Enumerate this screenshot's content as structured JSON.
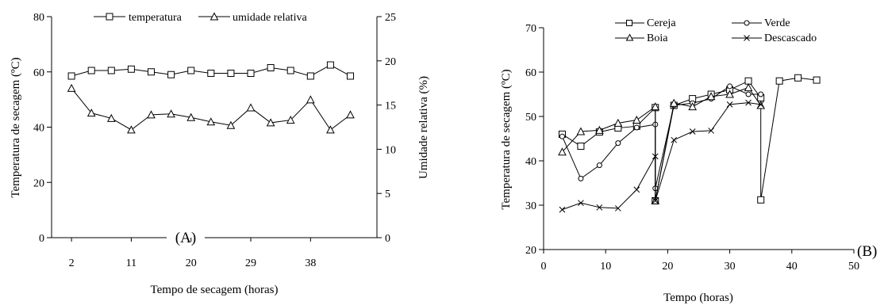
{
  "chart_data": [
    {
      "type": "line",
      "panel_label": "(A)",
      "xlabel": "Tempo de secagem (horas)",
      "ylabel": "Temperatura de secagem (ºC)",
      "y2label": "Umidade relativa (%)",
      "x_ticks": [
        "2",
        "11",
        "20",
        "29",
        "38"
      ],
      "y_ticks": [
        "0",
        "20",
        "40",
        "60",
        "80"
      ],
      "y2_ticks": [
        "0",
        "5",
        "10",
        "15",
        "20",
        "25"
      ],
      "xlim": [
        -1,
        48
      ],
      "ylim": [
        0,
        80
      ],
      "y2lim": [
        0,
        25
      ],
      "legend_position": "top",
      "series": [
        {
          "name": "temperatura",
          "marker": "square",
          "axis": "left",
          "x": [
            2,
            5,
            8,
            11,
            14,
            17,
            20,
            23,
            26,
            29,
            32,
            35,
            38,
            41,
            44
          ],
          "values": [
            58.5,
            60.5,
            60.5,
            61,
            60,
            59,
            60.5,
            59.5,
            59.5,
            59.5,
            61.5,
            60.5,
            58.5,
            62.5,
            58.5
          ]
        },
        {
          "name": "umidade relativa",
          "marker": "triangle",
          "axis": "right",
          "x": [
            2,
            5,
            8,
            11,
            14,
            17,
            20,
            23,
            26,
            29,
            32,
            35,
            38,
            41,
            44
          ],
          "values": [
            16.9,
            14.1,
            13.5,
            12.2,
            13.9,
            14.0,
            13.6,
            13.1,
            12.7,
            14.7,
            13.0,
            13.3,
            15.6,
            12.2,
            13.9
          ]
        }
      ]
    },
    {
      "type": "line",
      "panel_label": "(B)",
      "xlabel": "Tempo (horas)",
      "ylabel": "Temperatura de secagem (ºC)",
      "x_ticks": [
        "0",
        "10",
        "20",
        "30",
        "40",
        "50"
      ],
      "y_ticks": [
        "20",
        "30",
        "40",
        "50",
        "60",
        "70"
      ],
      "xlim": [
        0,
        50
      ],
      "ylim": [
        20,
        70
      ],
      "legend_position": "top",
      "series": [
        {
          "name": "Cereja",
          "marker": "square",
          "x": [
            3,
            6,
            9,
            12,
            15,
            18,
            18,
            21,
            24,
            27,
            30,
            33,
            35,
            35,
            38,
            41,
            44
          ],
          "values": [
            46,
            43.3,
            46.5,
            47.4,
            47.8,
            52,
            31,
            52.5,
            54,
            55,
            56,
            58,
            54.2,
            31.2,
            58,
            58.7,
            58.2
          ]
        },
        {
          "name": "Verde",
          "marker": "circle",
          "x": [
            3,
            6,
            9,
            12,
            15,
            18,
            18,
            21,
            24,
            27,
            30,
            33,
            35
          ],
          "values": [
            45.5,
            36,
            39,
            44,
            47.5,
            48.2,
            33.8,
            52.5,
            53,
            54,
            56.8,
            55,
            55
          ]
        },
        {
          "name": "Boia",
          "marker": "triangle",
          "x": [
            3,
            6,
            9,
            12,
            15,
            18,
            18,
            21,
            24,
            27,
            30,
            33,
            35
          ],
          "values": [
            42,
            46.6,
            46.9,
            48.5,
            49.2,
            52.2,
            31,
            53,
            52.2,
            54.5,
            55,
            56.5,
            52.5
          ]
        },
        {
          "name": "Descascado",
          "marker": "x",
          "x": [
            3,
            6,
            9,
            12,
            15,
            18,
            18,
            21,
            24,
            27,
            30,
            33,
            35
          ],
          "values": [
            29,
            30.5,
            29.5,
            29.3,
            33.5,
            41,
            31,
            44.7,
            46.6,
            46.8,
            52.7,
            53.1,
            52.7
          ]
        }
      ]
    }
  ]
}
